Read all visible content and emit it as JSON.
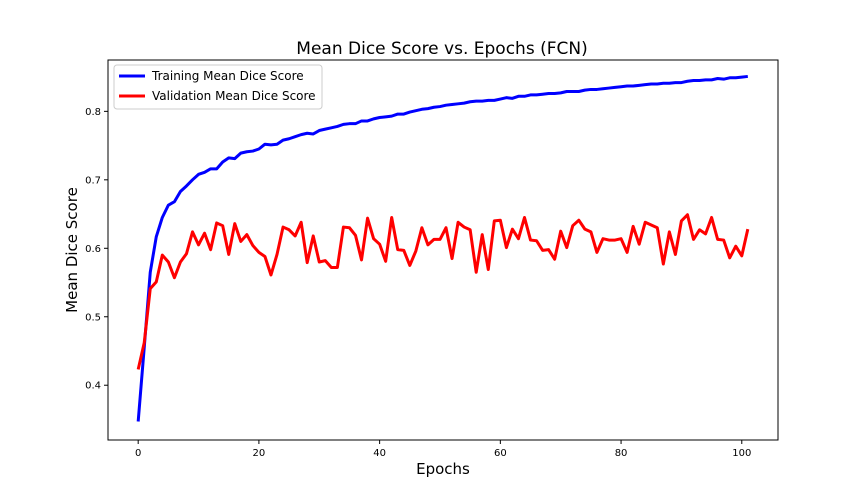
{
  "chart_data": {
    "type": "line",
    "title": "Mean Dice Score vs. Epochs (FCN)",
    "xlabel": "Epochs",
    "ylabel": "Mean Dice Score",
    "xlim": [
      -5,
      106
    ],
    "ylim": [
      0.32,
      0.875
    ],
    "x_ticks": [
      0,
      20,
      40,
      60,
      80,
      100
    ],
    "y_ticks": [
      0.4,
      0.5,
      0.6,
      0.7,
      0.8
    ],
    "grid": false,
    "legend_position": "top-left",
    "series": [
      {
        "name": "Training Mean Dice Score",
        "color": "#0000ff",
        "values": [
          0.347,
          0.455,
          0.565,
          0.617,
          0.645,
          0.663,
          0.668,
          0.683,
          0.691,
          0.7,
          0.708,
          0.711,
          0.716,
          0.716,
          0.726,
          0.732,
          0.731,
          0.739,
          0.741,
          0.742,
          0.745,
          0.752,
          0.751,
          0.752,
          0.758,
          0.76,
          0.763,
          0.766,
          0.768,
          0.767,
          0.772,
          0.774,
          0.776,
          0.778,
          0.781,
          0.782,
          0.782,
          0.786,
          0.786,
          0.789,
          0.791,
          0.792,
          0.793,
          0.796,
          0.796,
          0.799,
          0.801,
          0.803,
          0.804,
          0.806,
          0.807,
          0.809,
          0.81,
          0.811,
          0.812,
          0.814,
          0.815,
          0.815,
          0.816,
          0.816,
          0.818,
          0.82,
          0.819,
          0.822,
          0.822,
          0.824,
          0.824,
          0.825,
          0.826,
          0.826,
          0.827,
          0.829,
          0.829,
          0.829,
          0.831,
          0.832,
          0.832,
          0.833,
          0.834,
          0.835,
          0.836,
          0.837,
          0.837,
          0.838,
          0.839,
          0.84,
          0.84,
          0.841,
          0.841,
          0.842,
          0.842,
          0.844,
          0.845,
          0.845,
          0.846,
          0.846,
          0.848,
          0.847,
          0.849,
          0.849,
          0.85,
          0.851
        ]
      },
      {
        "name": "Validation Mean Dice Score",
        "color": "#ff0000",
        "values": [
          0.423,
          0.462,
          0.541,
          0.551,
          0.59,
          0.58,
          0.557,
          0.58,
          0.592,
          0.624,
          0.605,
          0.622,
          0.598,
          0.637,
          0.633,
          0.591,
          0.636,
          0.61,
          0.62,
          0.604,
          0.594,
          0.588,
          0.561,
          0.591,
          0.631,
          0.627,
          0.618,
          0.638,
          0.579,
          0.618,
          0.58,
          0.582,
          0.572,
          0.572,
          0.631,
          0.63,
          0.619,
          0.583,
          0.644,
          0.614,
          0.606,
          0.581,
          0.645,
          0.598,
          0.597,
          0.575,
          0.596,
          0.63,
          0.605,
          0.613,
          0.613,
          0.63,
          0.585,
          0.638,
          0.631,
          0.627,
          0.565,
          0.62,
          0.569,
          0.64,
          0.641,
          0.601,
          0.628,
          0.614,
          0.645,
          0.612,
          0.611,
          0.597,
          0.598,
          0.584,
          0.625,
          0.601,
          0.633,
          0.641,
          0.628,
          0.624,
          0.594,
          0.614,
          0.612,
          0.612,
          0.614,
          0.594,
          0.632,
          0.606,
          0.638,
          0.634,
          0.63,
          0.577,
          0.624,
          0.591,
          0.64,
          0.649,
          0.613,
          0.627,
          0.621,
          0.645,
          0.613,
          0.612,
          0.586,
          0.603,
          0.589,
          0.628
        ]
      }
    ]
  }
}
